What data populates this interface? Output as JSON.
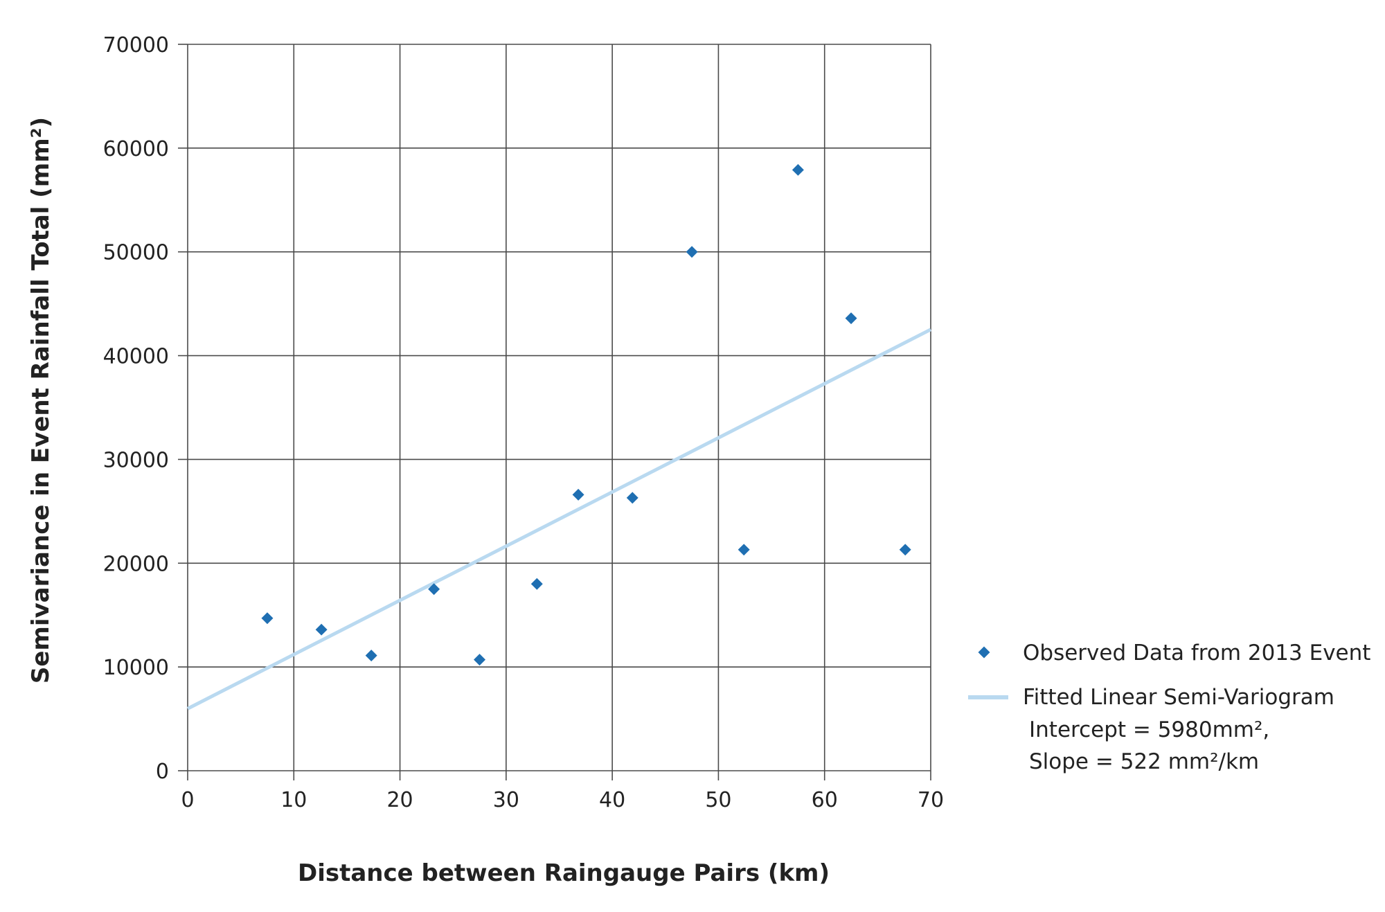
{
  "chart_data": {
    "type": "scatter",
    "title": "",
    "xlabel": "Distance between Raingauge Pairs (km)",
    "ylabel": "Semivariance in Event Rainfall Total (mm²)",
    "xlim": [
      0,
      70
    ],
    "ylim": [
      0,
      70000
    ],
    "x_ticks": [
      0,
      10,
      20,
      30,
      40,
      50,
      60,
      70
    ],
    "y_ticks": [
      0,
      10000,
      20000,
      30000,
      40000,
      50000,
      60000,
      70000
    ],
    "grid": true,
    "legend_position": "right",
    "series": [
      {
        "name": "Observed Data from 2013 Event",
        "kind": "scatter",
        "marker": "diamond",
        "color": "#1f6fb2",
        "points": [
          {
            "x": 7.5,
            "y": 14700
          },
          {
            "x": 12.6,
            "y": 13600
          },
          {
            "x": 17.3,
            "y": 11100
          },
          {
            "x": 23.2,
            "y": 17500
          },
          {
            "x": 27.5,
            "y": 10700
          },
          {
            "x": 32.9,
            "y": 18000
          },
          {
            "x": 36.8,
            "y": 26600
          },
          {
            "x": 41.9,
            "y": 26300
          },
          {
            "x": 47.5,
            "y": 50000
          },
          {
            "x": 52.4,
            "y": 21300
          },
          {
            "x": 57.5,
            "y": 57900
          },
          {
            "x": 62.5,
            "y": 43600
          },
          {
            "x": 67.6,
            "y": 21300
          }
        ]
      },
      {
        "name": "Fitted Linear Semi-Variogram",
        "kind": "line",
        "color": "#b9d9f0",
        "intercept": 5980,
        "slope": 522,
        "points": [
          {
            "x": 0,
            "y": 5980
          },
          {
            "x": 70,
            "y": 42520
          }
        ]
      }
    ],
    "legend": {
      "observed_label": "Observed Data from 2013 Event",
      "fitted_label": "Fitted Linear Semi-Variogram",
      "fitted_note_1": "Intercept = 5980mm²,",
      "fitted_note_2": "Slope = 522 mm²/km"
    },
    "colors": {
      "grid": "#4a4a4a",
      "marker": "#1f6fb2",
      "fit_line": "#b9d9f0"
    }
  }
}
